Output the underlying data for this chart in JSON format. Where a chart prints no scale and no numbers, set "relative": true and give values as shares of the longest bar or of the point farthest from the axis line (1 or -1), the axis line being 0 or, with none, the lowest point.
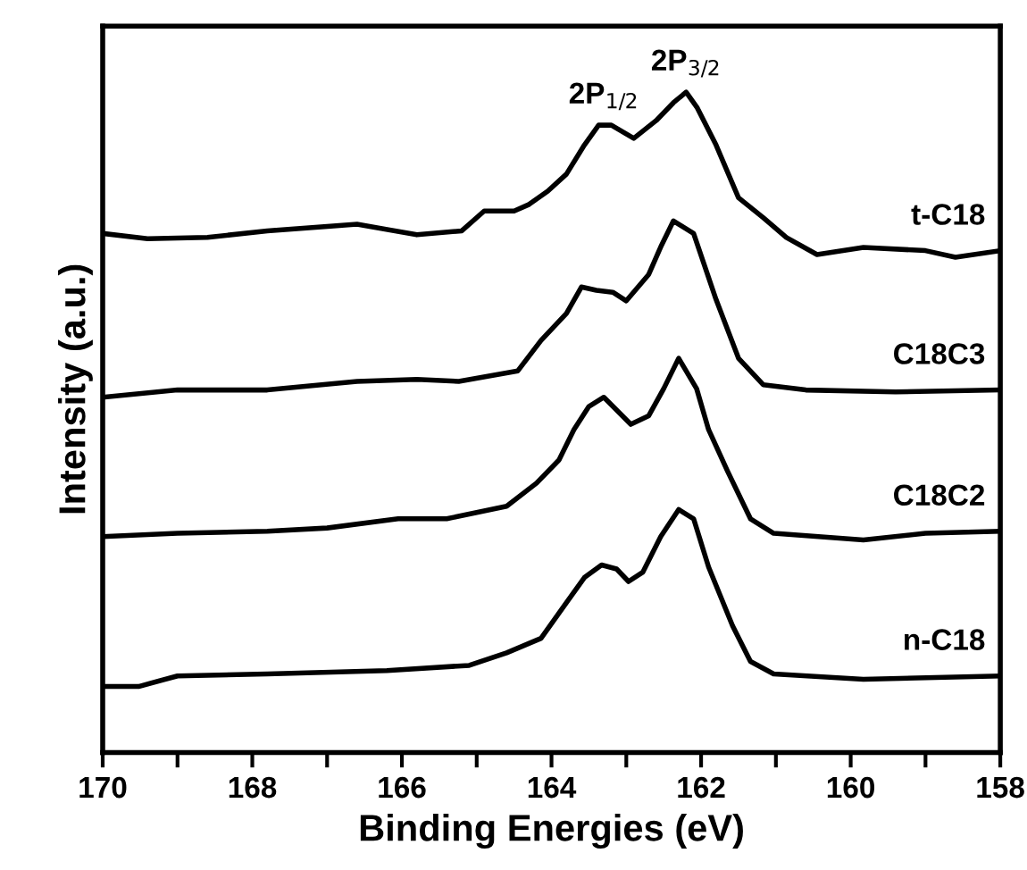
{
  "chart_data": {
    "type": "line",
    "relative": true,
    "xlabel": "Binding Energies (eV)",
    "ylabel": "Intensity (a.u.)",
    "xlim": [
      170,
      158
    ],
    "xticks": [
      170,
      {
        "value": 169,
        "label": null
      },
      168,
      {
        "value": 167,
        "label": null
      },
      166,
      {
        "value": 165,
        "label": null
      },
      164,
      {
        "value": 163,
        "label": null
      },
      162,
      {
        "value": 161,
        "label": null
      },
      160,
      {
        "value": 159,
        "label": null
      },
      158
    ],
    "tick_labels": "x",
    "grid": false,
    "legend": false,
    "marker": "none",
    "line_style": "solid",
    "annotations": [
      {
        "text": "2P$_{1/2}$",
        "x": 163.3,
        "y": 0.95
      },
      {
        "text": "2P$_{3/2}$",
        "x": 162.2,
        "y": 1.0
      }
    ],
    "series": [
      {
        "name": "t-C18",
        "color": "#000000",
        "x": [
          170,
          169.4,
          168.6,
          167.8,
          166.6,
          165.8,
          165.2,
          164.9,
          164.5,
          164.3,
          164.05,
          163.8,
          163.56,
          163.37,
          163.2,
          162.9,
          162.6,
          162.37,
          162.2,
          162.05,
          161.8,
          161.5,
          161.17,
          160.86,
          160.45,
          159.83,
          159.0,
          158.6,
          158.0
        ],
        "values": [
          0.786,
          0.778,
          0.78,
          0.79,
          0.8,
          0.784,
          0.79,
          0.82,
          0.82,
          0.83,
          0.85,
          0.876,
          0.92,
          0.95,
          0.95,
          0.93,
          0.957,
          0.984,
          1.0,
          0.976,
          0.92,
          0.84,
          0.81,
          0.78,
          0.754,
          0.765,
          0.76,
          0.75,
          0.76
        ]
      },
      {
        "name": "C18C3",
        "color": "#000000",
        "x": [
          170,
          169.0,
          167.8,
          166.6,
          165.8,
          165.24,
          164.45,
          164.14,
          163.8,
          163.6,
          163.4,
          163.18,
          163.0,
          162.7,
          162.53,
          162.37,
          162.1,
          161.8,
          161.5,
          161.17,
          160.6,
          159.4,
          158.0
        ],
        "values": [
          0.538,
          0.549,
          0.549,
          0.562,
          0.565,
          0.562,
          0.578,
          0.624,
          0.665,
          0.705,
          0.7,
          0.697,
          0.684,
          0.724,
          0.768,
          0.805,
          0.786,
          0.686,
          0.597,
          0.557,
          0.549,
          0.546,
          0.549
        ]
      },
      {
        "name": "C18C2",
        "color": "#000000",
        "x": [
          170,
          169.0,
          167.8,
          167.0,
          166.05,
          165.4,
          164.6,
          164.2,
          163.9,
          163.7,
          163.5,
          163.3,
          162.94,
          162.7,
          162.5,
          162.3,
          162.06,
          161.9,
          161.65,
          161.34,
          161.03,
          159.83,
          159.0,
          158.0
        ],
        "values": [
          0.327,
          0.332,
          0.335,
          0.34,
          0.354,
          0.354,
          0.373,
          0.408,
          0.443,
          0.489,
          0.524,
          0.538,
          0.497,
          0.51,
          0.551,
          0.597,
          0.551,
          0.489,
          0.427,
          0.354,
          0.332,
          0.322,
          0.332,
          0.335
        ]
      },
      {
        "name": "n-C18",
        "color": "#000000",
        "x": [
          170,
          169.52,
          169.0,
          167.8,
          166.2,
          165.1,
          164.6,
          164.14,
          163.8,
          163.56,
          163.33,
          163.13,
          162.97,
          162.78,
          162.54,
          162.3,
          162.1,
          161.9,
          161.58,
          161.34,
          161.03,
          159.83,
          158.0
        ],
        "values": [
          0.1,
          0.1,
          0.116,
          0.119,
          0.124,
          0.132,
          0.151,
          0.173,
          0.227,
          0.265,
          0.284,
          0.278,
          0.259,
          0.273,
          0.327,
          0.368,
          0.354,
          0.281,
          0.192,
          0.138,
          0.119,
          0.111,
          0.116
        ]
      }
    ]
  }
}
